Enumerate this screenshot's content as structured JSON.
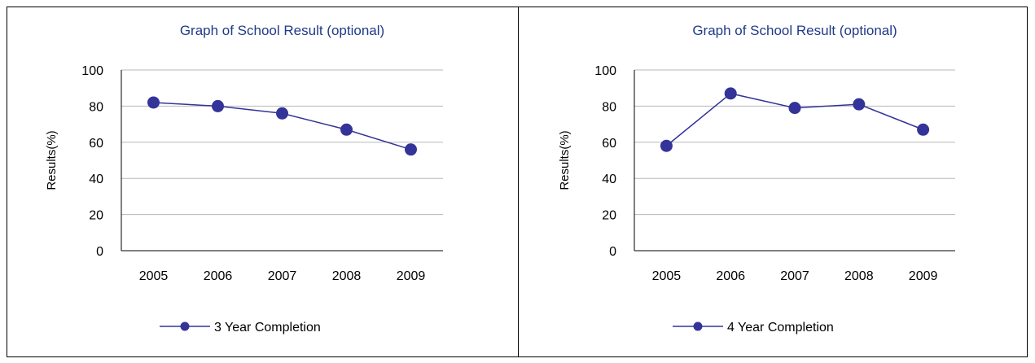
{
  "colors": {
    "series": "#333399",
    "title": "#1F3A8A",
    "grid": "#b8b8b8",
    "axis": "#000000",
    "border": "#000000"
  },
  "chart_data": [
    {
      "type": "line",
      "title": "Graph of School Result (optional)",
      "xlabel": "",
      "ylabel": "Results(%)",
      "categories": [
        "2005",
        "2006",
        "2007",
        "2008",
        "2009"
      ],
      "series": [
        {
          "name": "3 Year Completion",
          "values": [
            82,
            80,
            76,
            67,
            56
          ]
        }
      ],
      "ylim": [
        0,
        100
      ],
      "yticks": [
        "0",
        "20",
        "40",
        "60",
        "80",
        "100"
      ],
      "grid": true,
      "legend": "bottom"
    },
    {
      "type": "line",
      "title": "Graph of School Result (optional)",
      "xlabel": "",
      "ylabel": "Results(%)",
      "categories": [
        "2005",
        "2006",
        "2007",
        "2008",
        "2009"
      ],
      "series": [
        {
          "name": "4 Year Completion",
          "values": [
            58,
            87,
            79,
            81,
            67
          ]
        }
      ],
      "ylim": [
        0,
        100
      ],
      "yticks": [
        "0",
        "20",
        "40",
        "60",
        "80",
        "100"
      ],
      "grid": true,
      "legend": "bottom"
    }
  ]
}
